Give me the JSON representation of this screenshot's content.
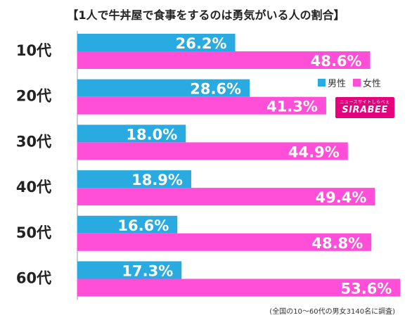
{
  "chart_data": {
    "type": "bar",
    "orientation": "horizontal",
    "title": "【1人で牛丼屋で食事をするのは勇気がいる人の割合】",
    "categories": [
      "10代",
      "20代",
      "30代",
      "40代",
      "50代",
      "60代"
    ],
    "series": [
      {
        "name": "男性",
        "color": "#29abe2",
        "values": [
          26.2,
          28.6,
          18.0,
          18.9,
          16.6,
          17.3
        ],
        "labels": [
          "26.2%",
          "28.6%",
          "18.0%",
          "18.9%",
          "16.6%",
          "17.3%"
        ]
      },
      {
        "name": "女性",
        "color": "#ff4fd8",
        "values": [
          48.6,
          41.3,
          44.9,
          49.4,
          48.8,
          53.6
        ],
        "labels": [
          "48.6%",
          "41.3%",
          "44.9%",
          "49.4%",
          "48.8%",
          "53.6%"
        ]
      }
    ],
    "xlim": [
      0,
      60
    ],
    "grid": false,
    "legend_position": "top-right"
  },
  "logo": {
    "small_text": "ニュースサイトしらべぇ",
    "main_text": "SIRABEE"
  },
  "footnote": "(全国の10〜60代の男女3140名に調査)"
}
